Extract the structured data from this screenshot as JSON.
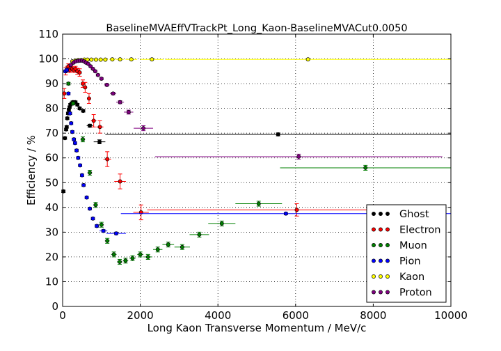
{
  "chart_data": {
    "type": "scatter",
    "title": "BaselineMVAEffVTrackPt_Long_Kaon-BaselineMVACut0.0050",
    "xlabel": "Long Kaon Transverse Momentum / MeV/c",
    "ylabel": "Efficiency / %",
    "xlim": [
      0,
      10000
    ],
    "ylim": [
      0,
      110
    ],
    "xticks": [
      0,
      2000,
      4000,
      6000,
      8000,
      10000
    ],
    "yticks": [
      0,
      10,
      20,
      30,
      40,
      50,
      60,
      70,
      80,
      90,
      100,
      110
    ],
    "grid": true,
    "legend_position": "lower-right",
    "series": [
      {
        "name": "Ghost",
        "color": "#000000",
        "points": [
          {
            "x": 20,
            "y": 46.5,
            "xerr": 20,
            "yerr": 0.5
          },
          {
            "x": 60,
            "y": 68.0,
            "xerr": 20,
            "yerr": 0.5
          },
          {
            "x": 90,
            "y": 71.5,
            "xerr": 15,
            "yerr": 0.5
          },
          {
            "x": 105,
            "y": 72.5,
            "xerr": 15,
            "yerr": 0.5
          },
          {
            "x": 120,
            "y": 76.0,
            "xerr": 15,
            "yerr": 0.5
          },
          {
            "x": 140,
            "y": 78.0,
            "xerr": 15,
            "yerr": 0.5
          },
          {
            "x": 160,
            "y": 79.5,
            "xerr": 15,
            "yerr": 0.5
          },
          {
            "x": 180,
            "y": 80.5,
            "xerr": 15,
            "yerr": 0.5
          },
          {
            "x": 200,
            "y": 81.5,
            "xerr": 15,
            "yerr": 0.5
          },
          {
            "x": 230,
            "y": 82.0,
            "xerr": 15,
            "yerr": 0.5
          },
          {
            "x": 260,
            "y": 82.5,
            "xerr": 15,
            "yerr": 0.5
          },
          {
            "x": 290,
            "y": 82.5,
            "xerr": 15,
            "yerr": 0.5
          },
          {
            "x": 330,
            "y": 82.5,
            "xerr": 20,
            "yerr": 0.5
          },
          {
            "x": 380,
            "y": 81.5,
            "xerr": 25,
            "yerr": 0.5
          },
          {
            "x": 440,
            "y": 80.0,
            "xerr": 30,
            "yerr": 0.5
          },
          {
            "x": 530,
            "y": 79.0,
            "xerr": 50,
            "yerr": 0.5
          },
          {
            "x": 700,
            "y": 73.0,
            "xerr": 80,
            "yerr": 0.6
          },
          {
            "x": 950,
            "y": 66.5,
            "xerr": 150,
            "yerr": 0.8
          },
          {
            "x": 5550,
            "y": 69.5,
            "xerr": 4450,
            "yerr": 0.6
          }
        ]
      },
      {
        "name": "Electron",
        "color": "#ff0000",
        "points": [
          {
            "x": 40,
            "y": 86.0,
            "xerr": 20,
            "yerr": 2.0
          },
          {
            "x": 80,
            "y": 95.0,
            "xerr": 20,
            "yerr": 1.5
          },
          {
            "x": 120,
            "y": 96.0,
            "xerr": 15,
            "yerr": 1.0
          },
          {
            "x": 150,
            "y": 97.0,
            "xerr": 15,
            "yerr": 1.0
          },
          {
            "x": 180,
            "y": 95.5,
            "xerr": 15,
            "yerr": 1.0
          },
          {
            "x": 210,
            "y": 96.5,
            "xerr": 15,
            "yerr": 1.0
          },
          {
            "x": 250,
            "y": 96.0,
            "xerr": 15,
            "yerr": 1.0
          },
          {
            "x": 290,
            "y": 95.5,
            "xerr": 15,
            "yerr": 1.0
          },
          {
            "x": 330,
            "y": 96.0,
            "xerr": 20,
            "yerr": 1.0
          },
          {
            "x": 380,
            "y": 95.0,
            "xerr": 25,
            "yerr": 1.2
          },
          {
            "x": 440,
            "y": 94.5,
            "xerr": 30,
            "yerr": 1.5
          },
          {
            "x": 520,
            "y": 90.0,
            "xerr": 40,
            "yerr": 1.5
          },
          {
            "x": 580,
            "y": 88.5,
            "xerr": 40,
            "yerr": 2.0
          },
          {
            "x": 680,
            "y": 84.0,
            "xerr": 50,
            "yerr": 2.0
          },
          {
            "x": 800,
            "y": 75.0,
            "xerr": 70,
            "yerr": 2.5
          },
          {
            "x": 960,
            "y": 72.5,
            "xerr": 90,
            "yerr": 2.5
          },
          {
            "x": 1150,
            "y": 59.5,
            "xerr": 100,
            "yerr": 3.0
          },
          {
            "x": 1480,
            "y": 50.5,
            "xerr": 150,
            "yerr": 3.0
          },
          {
            "x": 2020,
            "y": 38.0,
            "xerr": 200,
            "yerr": 3.0
          },
          {
            "x": 6030,
            "y": 39.0,
            "xerr": 3850,
            "yerr": 2.5
          }
        ]
      },
      {
        "name": "Muon",
        "color": "#008000",
        "points": [
          {
            "x": 150,
            "y": 90.0,
            "xerr": 40,
            "yerr": 0.5
          },
          {
            "x": 270,
            "y": 82.0,
            "xerr": 50,
            "yerr": 0.6
          },
          {
            "x": 520,
            "y": 67.5,
            "xerr": 60,
            "yerr": 1.0
          },
          {
            "x": 700,
            "y": 54.0,
            "xerr": 60,
            "yerr": 1.0
          },
          {
            "x": 850,
            "y": 41.0,
            "xerr": 60,
            "yerr": 1.0
          },
          {
            "x": 1000,
            "y": 33.0,
            "xerr": 60,
            "yerr": 1.0
          },
          {
            "x": 1150,
            "y": 26.5,
            "xerr": 60,
            "yerr": 1.0
          },
          {
            "x": 1320,
            "y": 21.0,
            "xerr": 70,
            "yerr": 1.0
          },
          {
            "x": 1470,
            "y": 18.0,
            "xerr": 70,
            "yerr": 1.0
          },
          {
            "x": 1620,
            "y": 18.5,
            "xerr": 70,
            "yerr": 1.0
          },
          {
            "x": 1800,
            "y": 19.5,
            "xerr": 80,
            "yerr": 1.0
          },
          {
            "x": 2000,
            "y": 21.0,
            "xerr": 80,
            "yerr": 1.0
          },
          {
            "x": 2200,
            "y": 20.0,
            "xerr": 100,
            "yerr": 1.0
          },
          {
            "x": 2450,
            "y": 23.0,
            "xerr": 120,
            "yerr": 1.0
          },
          {
            "x": 2720,
            "y": 25.0,
            "xerr": 150,
            "yerr": 1.0
          },
          {
            "x": 3080,
            "y": 24.0,
            "xerr": 200,
            "yerr": 1.0
          },
          {
            "x": 3520,
            "y": 29.0,
            "xerr": 250,
            "yerr": 1.0
          },
          {
            "x": 4100,
            "y": 33.5,
            "xerr": 350,
            "yerr": 1.0
          },
          {
            "x": 5050,
            "y": 41.5,
            "xerr": 600,
            "yerr": 1.0
          },
          {
            "x": 7800,
            "y": 56.0,
            "xerr": 2200,
            "yerr": 1.0
          }
        ]
      },
      {
        "name": "Pion",
        "color": "#0000ff",
        "points": [
          {
            "x": 70,
            "y": 95.0,
            "xerr": 20,
            "yerr": 0.5
          },
          {
            "x": 110,
            "y": 95.5,
            "xerr": 15,
            "yerr": 0.5
          },
          {
            "x": 150,
            "y": 86.0,
            "xerr": 15,
            "yerr": 0.5
          },
          {
            "x": 190,
            "y": 78.0,
            "xerr": 15,
            "yerr": 0.5
          },
          {
            "x": 220,
            "y": 74.0,
            "xerr": 15,
            "yerr": 0.5
          },
          {
            "x": 250,
            "y": 70.5,
            "xerr": 15,
            "yerr": 0.5
          },
          {
            "x": 290,
            "y": 67.5,
            "xerr": 15,
            "yerr": 0.5
          },
          {
            "x": 320,
            "y": 66.0,
            "xerr": 15,
            "yerr": 0.5
          },
          {
            "x": 360,
            "y": 63.0,
            "xerr": 15,
            "yerr": 0.5
          },
          {
            "x": 400,
            "y": 60.0,
            "xerr": 20,
            "yerr": 0.5
          },
          {
            "x": 450,
            "y": 57.0,
            "xerr": 20,
            "yerr": 0.5
          },
          {
            "x": 500,
            "y": 53.0,
            "xerr": 25,
            "yerr": 0.5
          },
          {
            "x": 540,
            "y": 49.0,
            "xerr": 25,
            "yerr": 0.5
          },
          {
            "x": 620,
            "y": 44.0,
            "xerr": 30,
            "yerr": 0.5
          },
          {
            "x": 700,
            "y": 39.5,
            "xerr": 40,
            "yerr": 0.5
          },
          {
            "x": 780,
            "y": 35.5,
            "xerr": 40,
            "yerr": 0.5
          },
          {
            "x": 880,
            "y": 32.5,
            "xerr": 50,
            "yerr": 0.5
          },
          {
            "x": 1050,
            "y": 30.5,
            "xerr": 100,
            "yerr": 0.5
          },
          {
            "x": 1380,
            "y": 29.5,
            "xerr": 250,
            "yerr": 0.5
          },
          {
            "x": 5750,
            "y": 37.5,
            "xerr": 4250,
            "yerr": 0.5
          }
        ]
      },
      {
        "name": "Kaon",
        "color": "#ffff00",
        "points": [
          {
            "x": 250,
            "y": 99.0,
            "xerr": 25,
            "yerr": 0.3
          },
          {
            "x": 330,
            "y": 99.3,
            "xerr": 25,
            "yerr": 0.3
          },
          {
            "x": 400,
            "y": 99.5,
            "xerr": 30,
            "yerr": 0.3
          },
          {
            "x": 480,
            "y": 99.5,
            "xerr": 30,
            "yerr": 0.3
          },
          {
            "x": 560,
            "y": 99.7,
            "xerr": 35,
            "yerr": 0.3
          },
          {
            "x": 640,
            "y": 99.7,
            "xerr": 40,
            "yerr": 0.3
          },
          {
            "x": 740,
            "y": 99.7,
            "xerr": 50,
            "yerr": 0.3
          },
          {
            "x": 860,
            "y": 99.7,
            "xerr": 60,
            "yerr": 0.3
          },
          {
            "x": 980,
            "y": 99.7,
            "xerr": 60,
            "yerr": 0.3
          },
          {
            "x": 1100,
            "y": 99.7,
            "xerr": 60,
            "yerr": 0.3
          },
          {
            "x": 1280,
            "y": 99.8,
            "xerr": 80,
            "yerr": 0.3
          },
          {
            "x": 1480,
            "y": 99.8,
            "xerr": 100,
            "yerr": 0.3
          },
          {
            "x": 1770,
            "y": 99.8,
            "xerr": 150,
            "yerr": 0.3
          },
          {
            "x": 2300,
            "y": 99.8,
            "xerr": 300,
            "yerr": 0.3
          },
          {
            "x": 6320,
            "y": 99.8,
            "xerr": 3680,
            "yerr": 0.3
          }
        ]
      },
      {
        "name": "Proton",
        "color": "#800080",
        "points": [
          {
            "x": 210,
            "y": 97.5,
            "xerr": 20,
            "yerr": 0.3
          },
          {
            "x": 280,
            "y": 98.5,
            "xerr": 20,
            "yerr": 0.3
          },
          {
            "x": 340,
            "y": 99.0,
            "xerr": 20,
            "yerr": 0.3
          },
          {
            "x": 400,
            "y": 99.2,
            "xerr": 25,
            "yerr": 0.3
          },
          {
            "x": 450,
            "y": 99.3,
            "xerr": 25,
            "yerr": 0.3
          },
          {
            "x": 500,
            "y": 99.3,
            "xerr": 25,
            "yerr": 0.3
          },
          {
            "x": 550,
            "y": 99.0,
            "xerr": 25,
            "yerr": 0.3
          },
          {
            "x": 600,
            "y": 98.5,
            "xerr": 30,
            "yerr": 0.3
          },
          {
            "x": 660,
            "y": 98.0,
            "xerr": 30,
            "yerr": 0.3
          },
          {
            "x": 720,
            "y": 97.0,
            "xerr": 30,
            "yerr": 0.3
          },
          {
            "x": 780,
            "y": 96.0,
            "xerr": 30,
            "yerr": 0.3
          },
          {
            "x": 840,
            "y": 95.0,
            "xerr": 30,
            "yerr": 0.4
          },
          {
            "x": 910,
            "y": 93.5,
            "xerr": 40,
            "yerr": 0.4
          },
          {
            "x": 1000,
            "y": 92.0,
            "xerr": 50,
            "yerr": 0.4
          },
          {
            "x": 1140,
            "y": 89.5,
            "xerr": 70,
            "yerr": 0.5
          },
          {
            "x": 1300,
            "y": 86.0,
            "xerr": 80,
            "yerr": 0.5
          },
          {
            "x": 1480,
            "y": 82.5,
            "xerr": 100,
            "yerr": 0.6
          },
          {
            "x": 1700,
            "y": 78.5,
            "xerr": 120,
            "yerr": 0.8
          },
          {
            "x": 2080,
            "y": 72.0,
            "xerr": 250,
            "yerr": 1.0
          },
          {
            "x": 6080,
            "y": 60.5,
            "xerr": 3700,
            "yerr": 1.0
          }
        ]
      }
    ]
  }
}
